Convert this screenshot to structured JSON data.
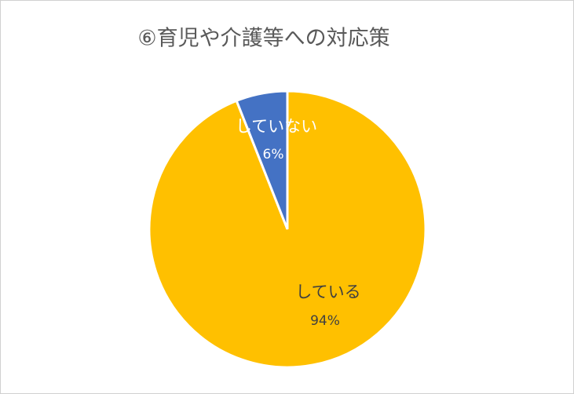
{
  "chart_data": {
    "type": "pie",
    "title": "⑥育児や介護等への対応策",
    "categories": [
      "している",
      "していない"
    ],
    "values": [
      94,
      6
    ],
    "value_labels": [
      "94%",
      "6%"
    ],
    "colors": [
      "#FFC000",
      "#4472C4"
    ]
  }
}
